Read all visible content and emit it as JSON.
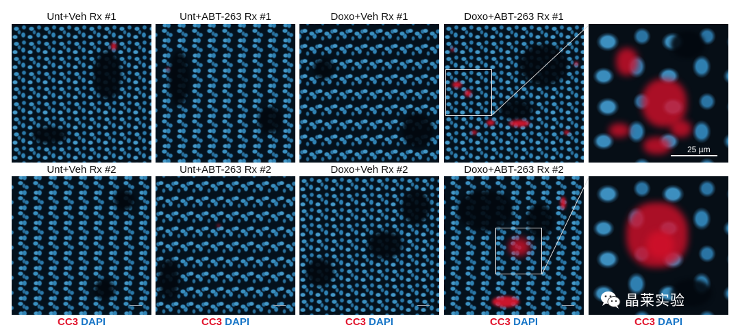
{
  "panels_row1": [
    {
      "title": "Unt+Veh Rx #1"
    },
    {
      "title": "Unt+ABT-263 Rx #1"
    },
    {
      "title": "Doxo+Veh Rx #1"
    },
    {
      "title": "Doxo+ABT-263 Rx #1"
    }
  ],
  "panels_row2": [
    {
      "title": "Unt+Veh Rx #2"
    },
    {
      "title": "Unt+ABT-263 Rx #2"
    },
    {
      "title": "Doxo+Veh Rx #2"
    },
    {
      "title": "Doxo+ABT-263 Rx #2"
    }
  ],
  "zoom_scale_label": "25 µm",
  "caption": {
    "cc3": "CC3",
    "dapi": "DAPI"
  },
  "watermark": {
    "text": "晶莱实验",
    "icon": "wechat-icon"
  },
  "colors": {
    "cc3": "#e2142d",
    "dapi": "#1976c7"
  }
}
